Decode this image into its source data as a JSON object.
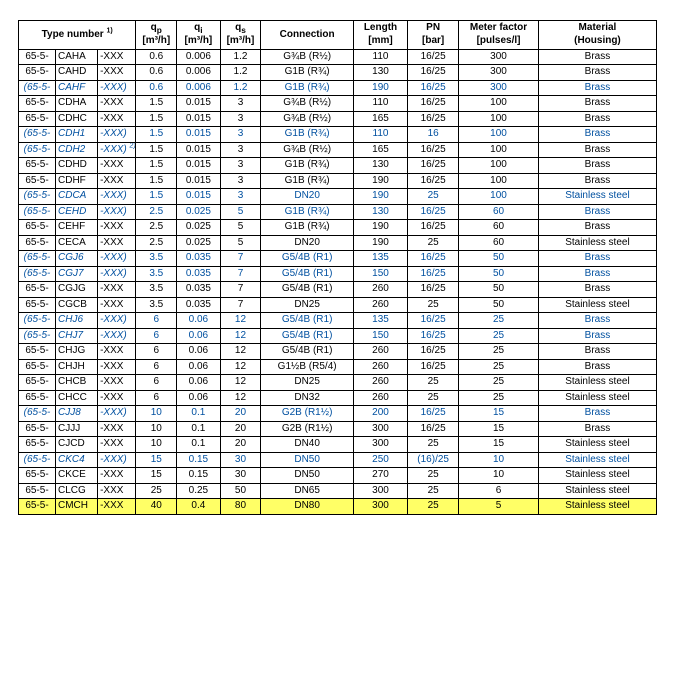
{
  "table": {
    "columns": [
      {
        "key": "type_number",
        "label_line1": "Type number",
        "sup": "1)",
        "span": 3
      },
      {
        "key": "qp",
        "label_line1": "q",
        "sub": "p",
        "label_line2": "[m³/h]"
      },
      {
        "key": "qi",
        "label_line1": "q",
        "sub": "i",
        "label_line2": "[m³/h]"
      },
      {
        "key": "qs",
        "label_line1": "q",
        "sub": "s",
        "label_line2": "[m³/h]"
      },
      {
        "key": "connection",
        "label_line1": "Connection"
      },
      {
        "key": "length",
        "label_line1": "Length",
        "label_line2": "[mm]"
      },
      {
        "key": "pn",
        "label_line1": "PN",
        "label_line2": "[bar]"
      },
      {
        "key": "mf",
        "label_line1": "Meter factor",
        "label_line2": "[pulses/l]"
      },
      {
        "key": "material",
        "label_line1": "Material",
        "label_line2": "(Housing)"
      }
    ],
    "col_widths_pct": [
      5.8,
      6.6,
      6.0,
      6.4,
      6.8,
      6.4,
      14.5,
      8.5,
      8.0,
      12.5,
      18.5
    ],
    "type_prefix_plain": "65-5-",
    "type_prefix_italic": "(65-5-",
    "type_suffix_plain": "-XXX",
    "type_suffix_italic": "-XXX)",
    "rows": [
      {
        "code": "CAHA",
        "qp": "0.6",
        "qi": "0.006",
        "qs": "1.2",
        "conn": "G¾B (R½)",
        "len": "110",
        "pn": "16/25",
        "mf": "300",
        "mat": "Brass",
        "style": "plain"
      },
      {
        "code": "CAHD",
        "qp": "0.6",
        "qi": "0.006",
        "qs": "1.2",
        "conn": "G1B (R¾)",
        "len": "130",
        "pn": "16/25",
        "mf": "300",
        "mat": "Brass",
        "style": "plain"
      },
      {
        "code": "CAHF",
        "qp": "0.6",
        "qi": "0.006",
        "qs": "1.2",
        "conn": "G1B (R¾)",
        "len": "190",
        "pn": "16/25",
        "mf": "300",
        "mat": "Brass",
        "style": "blue"
      },
      {
        "code": "CDHA",
        "qp": "1.5",
        "qi": "0.015",
        "qs": "3",
        "conn": "G¾B (R½)",
        "len": "110",
        "pn": "16/25",
        "mf": "100",
        "mat": "Brass",
        "style": "plain"
      },
      {
        "code": "CDHC",
        "qp": "1.5",
        "qi": "0.015",
        "qs": "3",
        "conn": "G¾B (R½)",
        "len": "165",
        "pn": "16/25",
        "mf": "100",
        "mat": "Brass",
        "style": "plain"
      },
      {
        "code": "CDH1",
        "qp": "1.5",
        "qi": "0.015",
        "qs": "3",
        "conn": "G1B (R¾)",
        "len": "110",
        "pn": "16",
        "mf": "100",
        "mat": "Brass",
        "style": "blue"
      },
      {
        "code": "CDH2",
        "suffix_note": "2)",
        "qp": "1.5",
        "qi": "0.015",
        "qs": "3",
        "conn": "G¾B (R½)",
        "len": "165",
        "pn": "16/25",
        "mf": "100",
        "mat": "Brass",
        "style": "blue_type_only"
      },
      {
        "code": "CDHD",
        "qp": "1.5",
        "qi": "0.015",
        "qs": "3",
        "conn": "G1B (R¾)",
        "len": "130",
        "pn": "16/25",
        "mf": "100",
        "mat": "Brass",
        "style": "plain"
      },
      {
        "code": "CDHF",
        "qp": "1.5",
        "qi": "0.015",
        "qs": "3",
        "conn": "G1B (R¾)",
        "len": "190",
        "pn": "16/25",
        "mf": "100",
        "mat": "Brass",
        "style": "plain"
      },
      {
        "code": "CDCA",
        "qp": "1.5",
        "qi": "0.015",
        "qs": "3",
        "conn": "DN20",
        "len": "190",
        "pn": "25",
        "mf": "100",
        "mat": "Stainless steel",
        "style": "blue"
      },
      {
        "code": "CEHD",
        "qp": "2.5",
        "qi": "0.025",
        "qs": "5",
        "conn": "G1B (R¾)",
        "len": "130",
        "pn": "16/25",
        "mf": "60",
        "mat": "Brass",
        "style": "blue"
      },
      {
        "code": "CEHF",
        "qp": "2.5",
        "qi": "0.025",
        "qs": "5",
        "conn": "G1B (R¾)",
        "len": "190",
        "pn": "16/25",
        "mf": "60",
        "mat": "Brass",
        "style": "plain"
      },
      {
        "code": "CECA",
        "qp": "2.5",
        "qi": "0.025",
        "qs": "5",
        "conn": "DN20",
        "len": "190",
        "pn": "25",
        "mf": "60",
        "mat": "Stainless steel",
        "style": "plain"
      },
      {
        "code": "CGJ6",
        "qp": "3.5",
        "qi": "0.035",
        "qs": "7",
        "conn": "G5/4B (R1)",
        "len": "135",
        "pn": "16/25",
        "mf": "50",
        "mat": "Brass",
        "style": "blue"
      },
      {
        "code": "CGJ7",
        "qp": "3.5",
        "qi": "0.035",
        "qs": "7",
        "conn": "G5/4B (R1)",
        "len": "150",
        "pn": "16/25",
        "mf": "50",
        "mat": "Brass",
        "style": "blue"
      },
      {
        "code": "CGJG",
        "qp": "3.5",
        "qi": "0.035",
        "qs": "7",
        "conn": "G5/4B (R1)",
        "len": "260",
        "pn": "16/25",
        "mf": "50",
        "mat": "Brass",
        "style": "plain"
      },
      {
        "code": "CGCB",
        "qp": "3.5",
        "qi": "0.035",
        "qs": "7",
        "conn": "DN25",
        "len": "260",
        "pn": "25",
        "mf": "50",
        "mat": "Stainless steel",
        "style": "plain"
      },
      {
        "code": "CHJ6",
        "qp": "6",
        "qi": "0.06",
        "qs": "12",
        "conn": "G5/4B (R1)",
        "len": "135",
        "pn": "16/25",
        "mf": "25",
        "mat": "Brass",
        "style": "blue"
      },
      {
        "code": "CHJ7",
        "qp": "6",
        "qi": "0.06",
        "qs": "12",
        "conn": "G5/4B (R1)",
        "len": "150",
        "pn": "16/25",
        "mf": "25",
        "mat": "Brass",
        "style": "blue"
      },
      {
        "code": "CHJG",
        "qp": "6",
        "qi": "0.06",
        "qs": "12",
        "conn": "G5/4B (R1)",
        "len": "260",
        "pn": "16/25",
        "mf": "25",
        "mat": "Brass",
        "style": "plain"
      },
      {
        "code": "CHJH",
        "qp": "6",
        "qi": "0.06",
        "qs": "12",
        "conn": "G1½B (R5/4)",
        "len": "260",
        "pn": "16/25",
        "mf": "25",
        "mat": "Brass",
        "style": "plain"
      },
      {
        "code": "CHCB",
        "qp": "6",
        "qi": "0.06",
        "qs": "12",
        "conn": "DN25",
        "len": "260",
        "pn": "25",
        "mf": "25",
        "mat": "Stainless steel",
        "style": "plain"
      },
      {
        "code": "CHCC",
        "qp": "6",
        "qi": "0.06",
        "qs": "12",
        "conn": "DN32",
        "len": "260",
        "pn": "25",
        "mf": "25",
        "mat": "Stainless steel",
        "style": "plain"
      },
      {
        "code": "CJJ8",
        "qp": "10",
        "qi": "0.1",
        "qs": "20",
        "conn": "G2B (R1½)",
        "len": "200",
        "pn": "16/25",
        "mf": "15",
        "mat": "Brass",
        "style": "blue"
      },
      {
        "code": "CJJJ",
        "qp": "10",
        "qi": "0.1",
        "qs": "20",
        "conn": "G2B (R1½)",
        "len": "300",
        "pn": "16/25",
        "mf": "15",
        "mat": "Brass",
        "style": "plain"
      },
      {
        "code": "CJCD",
        "qp": "10",
        "qi": "0.1",
        "qs": "20",
        "conn": "DN40",
        "len": "300",
        "pn": "25",
        "mf": "15",
        "mat": "Stainless steel",
        "style": "plain"
      },
      {
        "code": "CKC4",
        "qp": "15",
        "qi": "0.15",
        "qs": "30",
        "conn": "DN50",
        "len": "250",
        "pn": "(16)/25",
        "mf": "10",
        "mat": "Stainless steel",
        "style": "blue"
      },
      {
        "code": "CKCE",
        "qp": "15",
        "qi": "0.15",
        "qs": "30",
        "conn": "DN50",
        "len": "270",
        "pn": "25",
        "mf": "10",
        "mat": "Stainless steel",
        "style": "plain"
      },
      {
        "code": "CLCG",
        "qp": "25",
        "qi": "0.25",
        "qs": "50",
        "conn": "DN65",
        "len": "300",
        "pn": "25",
        "mf": "6",
        "mat": "Stainless steel",
        "style": "plain"
      },
      {
        "code": "CMCH",
        "qp": "40",
        "qi": "0.4",
        "qs": "80",
        "conn": "DN80",
        "len": "300",
        "pn": "25",
        "mf": "5",
        "mat": "Stainless steel",
        "style": "plain",
        "highlight": true
      }
    ],
    "highlight_color": "#ffff66",
    "blue_color": "#0050a0",
    "border_color": "#000000",
    "background_color": "#ffffff",
    "font_family": "Arial",
    "font_size_pt": 7.5
  }
}
